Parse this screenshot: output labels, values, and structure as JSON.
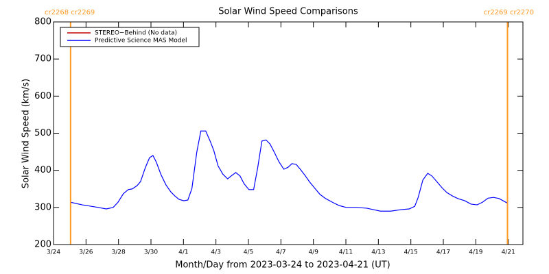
{
  "chart_data": {
    "type": "line",
    "title": "Solar Wind Speed Comparisons",
    "xlabel": "Month/Day from 2023-03-24 to 2023-04-21 (UT)",
    "ylabel": "Solar Wind Speed (km/s)",
    "xlim": [
      0,
      28.9
    ],
    "ylim": [
      200,
      800
    ],
    "yticks": [
      200,
      300,
      400,
      500,
      600,
      700,
      800
    ],
    "xticks": [
      {
        "value": 0,
        "label": "3/24"
      },
      {
        "value": 2,
        "label": "3/26"
      },
      {
        "value": 4,
        "label": "3/28"
      },
      {
        "value": 6,
        "label": "3/30"
      },
      {
        "value": 8,
        "label": "4/1"
      },
      {
        "value": 10,
        "label": "4/3"
      },
      {
        "value": 12,
        "label": "4/5"
      },
      {
        "value": 14,
        "label": "4/7"
      },
      {
        "value": 16,
        "label": "4/9"
      },
      {
        "value": 18,
        "label": "4/11"
      },
      {
        "value": 20,
        "label": "4/13"
      },
      {
        "value": 22,
        "label": "4/15"
      },
      {
        "value": 24,
        "label": "4/17"
      },
      {
        "value": 26,
        "label": "4/19"
      },
      {
        "value": 28,
        "label": "4/21"
      }
    ],
    "markers": [
      {
        "x": 1.05,
        "label": "cr2268 cr2269",
        "color": "#ff9922"
      },
      {
        "x": 27.95,
        "label": "cr2269 cr2270",
        "color": "#ff9922"
      }
    ],
    "series": [
      {
        "name": "STEREO−Behind (No data)",
        "color": "#c00000",
        "x": [],
        "values": []
      },
      {
        "name": "Predictive Science MAS Model",
        "color": "#0000ff",
        "x": [
          1.05,
          1.77,
          2.62,
          3.25,
          3.67,
          3.97,
          4.3,
          4.6,
          4.85,
          5.15,
          5.36,
          5.65,
          5.91,
          6.12,
          6.33,
          6.62,
          6.92,
          7.22,
          7.47,
          7.72,
          8.02,
          8.27,
          8.52,
          8.82,
          9.07,
          9.37,
          9.66,
          9.87,
          10.13,
          10.42,
          10.72,
          10.97,
          11.22,
          11.48,
          11.73,
          12.03,
          12.32,
          12.57,
          12.83,
          13.08,
          13.33,
          13.59,
          13.88,
          14.18,
          14.43,
          14.68,
          14.94,
          15.19,
          15.49,
          15.78,
          16.12,
          16.41,
          16.75,
          17.17,
          17.59,
          18.02,
          18.65,
          19.28,
          19.7,
          20.13,
          20.76,
          21.39,
          21.9,
          22.24,
          22.45,
          22.74,
          23.04,
          23.29,
          23.59,
          23.92,
          24.22,
          24.56,
          24.89,
          25.32,
          25.7,
          26.08,
          26.41,
          26.75,
          27.09,
          27.43,
          27.93
        ],
        "values": [
          314,
          307,
          301,
          296,
          300,
          314,
          337,
          348,
          350,
          359,
          370,
          407,
          434,
          440,
          422,
          388,
          361,
          342,
          331,
          322,
          318,
          320,
          351,
          449,
          506,
          506,
          477,
          453,
          412,
          390,
          377,
          386,
          394,
          385,
          364,
          348,
          348,
          407,
          479,
          482,
          471,
          449,
          423,
          403,
          408,
          418,
          416,
          403,
          386,
          368,
          350,
          335,
          324,
          314,
          305,
          300,
          300,
          298,
          294,
          290,
          290,
          294,
          296,
          303,
          327,
          374,
          392,
          385,
          370,
          353,
          340,
          331,
          324,
          318,
          309,
          307,
          314,
          325,
          327,
          324,
          312
        ]
      }
    ]
  }
}
